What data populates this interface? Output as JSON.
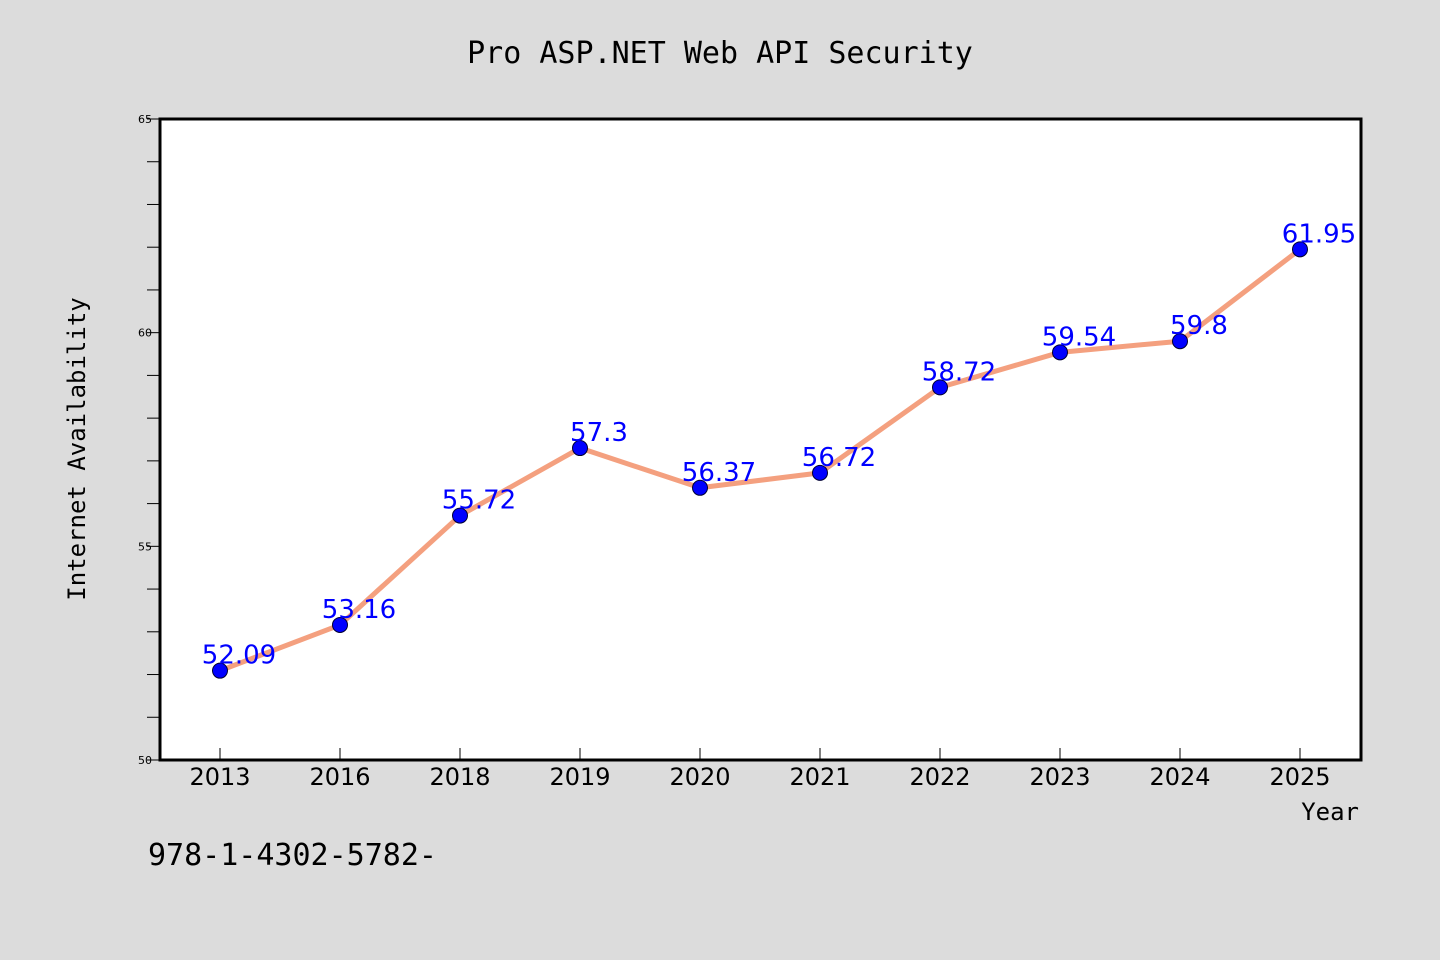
{
  "chart_data": {
    "type": "line",
    "title": "Pro ASP.NET Web API Security",
    "xlabel": "Year",
    "ylabel": "Internet Availability",
    "categories": [
      "2013",
      "2016",
      "2018",
      "2019",
      "2020",
      "2021",
      "2022",
      "2023",
      "2024",
      "2025"
    ],
    "series": [
      {
        "values": [
          52.09,
          53.16,
          55.72,
          57.3,
          56.37,
          56.72,
          58.72,
          59.54,
          59.8,
          61.95
        ],
        "line_color": "#f4a07f",
        "marker_color": "#0000ff"
      }
    ],
    "data_labels": [
      "52.09",
      "53.16",
      "55.72",
      "57.3",
      "56.37",
      "56.72",
      "58.72",
      "59.54",
      "59.8",
      "61.95"
    ],
    "ylim": [
      50,
      65
    ],
    "yticks": [
      "50",
      "55",
      "60",
      "65"
    ],
    "grid": false,
    "legend": "none",
    "label_color": "#0000ff"
  },
  "footer": {
    "text": "978-1-4302-5782-"
  }
}
